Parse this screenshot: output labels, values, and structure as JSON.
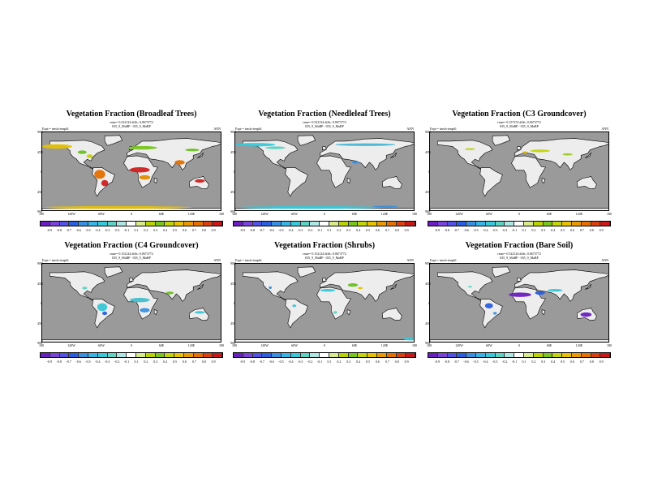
{
  "panels": [
    {
      "title": "Vegetation Fraction (Broadleaf Trees)",
      "stats": "rmse= 0.522124 diffs: 0.0673772",
      "expt": "Expt = trnsfs-tenph1",
      "runs": "035_9_MaBP - 035_9_MaBP",
      "period": "ANN",
      "patches": [
        {
          "lon": -150,
          "lat": 58,
          "w": 60,
          "h": 10,
          "color": "#e6c200"
        },
        {
          "lon": -100,
          "lat": 45,
          "w": 18,
          "h": 8,
          "color": "#6bbf23"
        },
        {
          "lon": -85,
          "lat": 36,
          "w": 12,
          "h": 8,
          "color": "#c7d000"
        },
        {
          "lon": -65,
          "lat": -5,
          "w": 22,
          "h": 20,
          "color": "#e37000"
        },
        {
          "lon": -55,
          "lat": -25,
          "w": 14,
          "h": 14,
          "color": "#d02020"
        },
        {
          "lon": 15,
          "lat": 5,
          "w": 40,
          "h": 12,
          "color": "#d02020"
        },
        {
          "lon": 25,
          "lat": -12,
          "w": 22,
          "h": 10,
          "color": "#e08c00"
        },
        {
          "lon": 20,
          "lat": 55,
          "w": 60,
          "h": 8,
          "color": "#79c51d"
        },
        {
          "lon": 95,
          "lat": 22,
          "w": 20,
          "h": 10,
          "color": "#e37000"
        },
        {
          "lon": 120,
          "lat": 50,
          "w": 28,
          "h": 6,
          "color": "#6bbf23"
        },
        {
          "lon": 135,
          "lat": -20,
          "w": 20,
          "h": 8,
          "color": "#d02020"
        },
        {
          "lon": -30,
          "lat": -80,
          "w": 300,
          "h": 6,
          "color": "#e6c200"
        }
      ]
    },
    {
      "title": "Vegetation Fraction (Needleleaf Trees)",
      "stats": "rmse= 0.523134 diffs: 0.0673772",
      "expt": "Expt = trnsfs-tenph1",
      "runs": "035_9_MaBP - 035_9_MaBP",
      "period": "ANN",
      "patches": [
        {
          "lon": -140,
          "lat": 62,
          "w": 80,
          "h": 8,
          "color": "#38c8d8"
        },
        {
          "lon": -100,
          "lat": 55,
          "w": 40,
          "h": 6,
          "color": "#5fd3c3"
        },
        {
          "lon": 80,
          "lat": 62,
          "w": 120,
          "h": 6,
          "color": "#4cb6d6"
        },
        {
          "lon": 60,
          "lat": 22,
          "w": 14,
          "h": 6,
          "color": "#3a8fe0"
        },
        {
          "lon": -30,
          "lat": -80,
          "w": 300,
          "h": 6,
          "color": "#38c8d8"
        },
        {
          "lon": 120,
          "lat": -78,
          "w": 50,
          "h": 4,
          "color": "#3a8fe0"
        }
      ]
    },
    {
      "title": "Vegetation Fraction (C3 Groundcover)",
      "stats": "rmse= 0.157374 diffs: 0.0673772",
      "expt": "Expt = trnsfs-tenph1",
      "runs": "035_9_MaBP - 035_9_MaBP",
      "period": "ANN",
      "patches": [
        {
          "lon": -100,
          "lat": 52,
          "w": 20,
          "h": 4,
          "color": "#b9d200"
        },
        {
          "lon": 40,
          "lat": 48,
          "w": 40,
          "h": 6,
          "color": "#c2d40c"
        },
        {
          "lon": 95,
          "lat": 40,
          "w": 20,
          "h": 5,
          "color": "#9bcb1a"
        },
        {
          "lon": 10,
          "lat": 45,
          "w": 10,
          "h": 4,
          "color": "#e6c200"
        }
      ]
    },
    {
      "title": "Vegetation Fraction (C4 Groundcover)",
      "stats": "rmse= 0.152124 diffs: 0.0673772",
      "expt": "Expt = trnsfs-tenph1",
      "runs": "035_9_MaBP - 035_9_MaBP",
      "period": "ANN",
      "patches": [
        {
          "lon": -60,
          "lat": -8,
          "w": 20,
          "h": 18,
          "color": "#3ac6d6"
        },
        {
          "lon": -55,
          "lat": -22,
          "w": 10,
          "h": 8,
          "color": "#2a5fe0"
        },
        {
          "lon": 15,
          "lat": 8,
          "w": 40,
          "h": 10,
          "color": "#44c0cc"
        },
        {
          "lon": 25,
          "lat": -15,
          "w": 20,
          "h": 10,
          "color": "#3a8fe0"
        },
        {
          "lon": -95,
          "lat": 35,
          "w": 10,
          "h": 6,
          "color": "#5fd3c3"
        },
        {
          "lon": 75,
          "lat": 24,
          "w": 16,
          "h": 6,
          "color": "#6bbf23"
        },
        {
          "lon": 135,
          "lat": -20,
          "w": 20,
          "h": 6,
          "color": "#3ac6d6"
        }
      ]
    },
    {
      "title": "Vegetation Fraction (Shrubs)",
      "stats": "rmse= 0.152124 diffs: 0.0673772",
      "expt": "Expt = trnsfs-tenph1",
      "runs": "035_9_MaBP - 035_9_MaBP",
      "period": "ANN",
      "patches": [
        {
          "lon": -110,
          "lat": 36,
          "w": 6,
          "h": 6,
          "color": "#3a8fe0"
        },
        {
          "lon": 5,
          "lat": 30,
          "w": 30,
          "h": 6,
          "color": "#3ac6d6"
        },
        {
          "lon": 55,
          "lat": 42,
          "w": 20,
          "h": 8,
          "color": "#6bbf23"
        },
        {
          "lon": 70,
          "lat": 35,
          "w": 10,
          "h": 5,
          "color": "#e6c200"
        },
        {
          "lon": -62,
          "lat": -5,
          "w": 8,
          "h": 6,
          "color": "#3ac6d6"
        },
        {
          "lon": 20,
          "lat": -20,
          "w": 8,
          "h": 6,
          "color": "#5fd3c3"
        },
        {
          "lon": 170,
          "lat": -80,
          "w": 30,
          "h": 6,
          "color": "#38c8d8"
        }
      ]
    },
    {
      "title": "Vegetation Fraction (Bare Soil)",
      "stats": "rmse= 0.522124 diffs: 0.0673772",
      "expt": "Expt = trnsfs-tenph1",
      "runs": "035_9_MaBP - 035_9_MaBP",
      "period": "ANN",
      "patches": [
        {
          "lon": 0,
          "lat": 20,
          "w": 45,
          "h": 10,
          "color": "#6a1fc0"
        },
        {
          "lon": 40,
          "lat": 24,
          "w": 20,
          "h": 8,
          "color": "#2a5fe0"
        },
        {
          "lon": 70,
          "lat": 30,
          "w": 30,
          "h": 6,
          "color": "#3ac6d6"
        },
        {
          "lon": -62,
          "lat": -5,
          "w": 16,
          "h": 12,
          "color": "#2a5fe0"
        },
        {
          "lon": -50,
          "lat": -22,
          "w": 8,
          "h": 6,
          "color": "#3a8fe0"
        },
        {
          "lon": 132,
          "lat": -25,
          "w": 22,
          "h": 10,
          "color": "#6a1fc0"
        },
        {
          "lon": -100,
          "lat": 38,
          "w": 8,
          "h": 4,
          "color": "#5fd3c3"
        }
      ]
    }
  ],
  "lat_labels": [
    "90N",
    "45N",
    "0",
    "45S",
    "90S"
  ],
  "lat_values": [
    90,
    45,
    0,
    -45,
    -90
  ],
  "lon_labels": [
    "180",
    "120W",
    "60W",
    "0",
    "60E",
    "120E",
    "180"
  ],
  "lon_values": [
    -180,
    -120,
    -60,
    0,
    60,
    120,
    180
  ],
  "colorbar": {
    "labels": [
      "-0.9",
      "-0.8",
      "-0.7",
      "-0.6",
      "-0.5",
      "-0.4",
      "-0.3",
      "-0.2",
      "-0.1",
      "0.1",
      "0.2",
      "0.3",
      "0.4",
      "0.5",
      "0.6",
      "0.7",
      "0.8",
      "0.9"
    ],
    "colors": [
      "#6a1fc0",
      "#7b44d8",
      "#5252e6",
      "#2a5fe0",
      "#3a8fe0",
      "#38b4e6",
      "#38c8d8",
      "#5fd3c3",
      "#aee6e6",
      "#ffffff",
      "#d7eb8a",
      "#b9d200",
      "#79c51d",
      "#c2d40c",
      "#e6c200",
      "#e89a00",
      "#e37000",
      "#d94010",
      "#c81818"
    ]
  },
  "colors": {
    "ocean": "#9a9a9a",
    "land": "#ededed",
    "coast": "#000000"
  }
}
